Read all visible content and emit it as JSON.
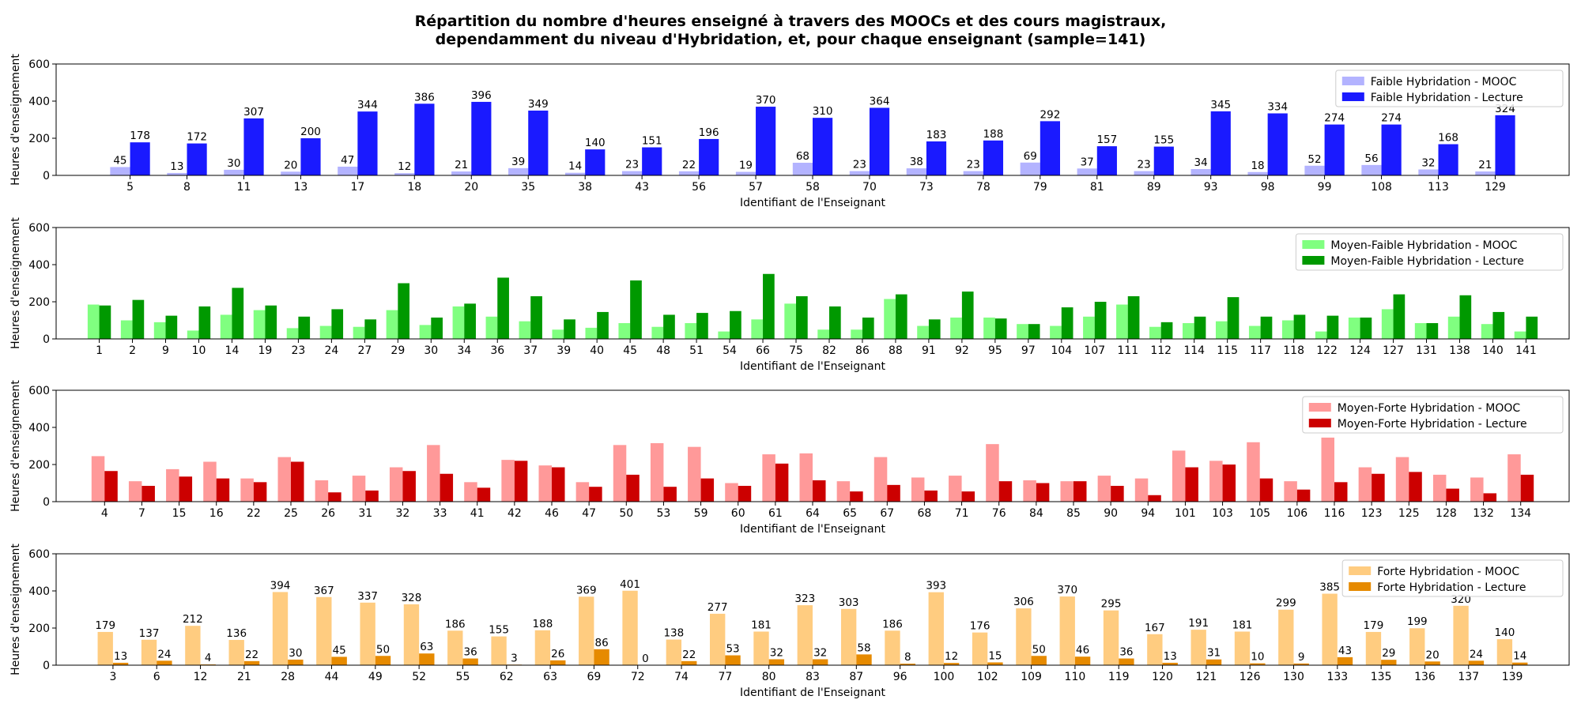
{
  "title_line1": "Répartition du nombre d'heures enseigné à travers des MOOCs et des cours magistraux,",
  "title_line2": "dependamment du niveau d'Hybridation, et, pour chaque enseignant (sample=141)",
  "chart_data": [
    {
      "type": "bar",
      "xlabel": "Identifiant de l'Enseignant",
      "ylabel": "Heures d'enseignement",
      "ylim": [
        0,
        600
      ],
      "yticks": [
        0,
        200,
        400,
        600
      ],
      "grid": false,
      "legend_position": "top-right",
      "show_value_labels": true,
      "categories": [
        "5",
        "8",
        "11",
        "13",
        "17",
        "18",
        "20",
        "35",
        "38",
        "43",
        "56",
        "57",
        "58",
        "70",
        "73",
        "78",
        "79",
        "81",
        "89",
        "93",
        "98",
        "99",
        "108",
        "113",
        "129"
      ],
      "series": [
        {
          "name": "Faible Hybridation - MOOC",
          "color": "#b3b3ff",
          "values": [
            45,
            13,
            30,
            20,
            47,
            12,
            21,
            39,
            14,
            23,
            22,
            19,
            68,
            23,
            38,
            23,
            69,
            37,
            23,
            34,
            18,
            52,
            56,
            32,
            21
          ]
        },
        {
          "name": "Faible Hybridation - Lecture",
          "color": "#1a1aff",
          "values": [
            178,
            172,
            307,
            200,
            344,
            386,
            396,
            349,
            140,
            151,
            196,
            370,
            310,
            364,
            183,
            188,
            292,
            157,
            155,
            345,
            334,
            274,
            274,
            168,
            324
          ]
        }
      ]
    },
    {
      "type": "bar",
      "xlabel": "Identifiant de l'Enseignant",
      "ylabel": "Heures d'enseignement",
      "ylim": [
        0,
        600
      ],
      "yticks": [
        0,
        200,
        400,
        600
      ],
      "grid": false,
      "legend_position": "top-right",
      "show_value_labels": false,
      "categories": [
        "1",
        "2",
        "9",
        "10",
        "14",
        "19",
        "23",
        "24",
        "27",
        "29",
        "30",
        "34",
        "36",
        "37",
        "39",
        "40",
        "45",
        "48",
        "51",
        "54",
        "66",
        "75",
        "82",
        "86",
        "88",
        "91",
        "92",
        "95",
        "97",
        "104",
        "107",
        "111",
        "112",
        "114",
        "115",
        "117",
        "118",
        "122",
        "124",
        "127",
        "131",
        "138",
        "140",
        "141"
      ],
      "series": [
        {
          "name": "Moyen-Faible Hybridation - MOOC",
          "color": "#80ff80",
          "values": [
            185,
            100,
            90,
            45,
            130,
            155,
            58,
            70,
            65,
            155,
            75,
            175,
            120,
            95,
            50,
            60,
            85,
            65,
            85,
            40,
            105,
            190,
            50,
            50,
            215,
            70,
            115,
            115,
            80,
            70,
            120,
            185,
            65,
            85,
            95,
            70,
            100,
            40,
            115,
            160,
            85,
            120,
            80,
            40
          ]
        },
        {
          "name": "Moyen-Faible Hybridation - Lecture",
          "color": "#009900",
          "values": [
            180,
            210,
            125,
            175,
            275,
            180,
            120,
            160,
            105,
            300,
            115,
            190,
            330,
            230,
            105,
            145,
            315,
            130,
            140,
            150,
            350,
            230,
            175,
            115,
            240,
            105,
            255,
            110,
            80,
            170,
            200,
            230,
            90,
            120,
            225,
            120,
            130,
            125,
            115,
            240,
            85,
            235,
            145,
            120
          ]
        }
      ]
    },
    {
      "type": "bar",
      "xlabel": "Identifiant de l'Enseignant",
      "ylabel": "Heures d'enseignement",
      "ylim": [
        0,
        600
      ],
      "yticks": [
        0,
        200,
        400,
        600
      ],
      "grid": false,
      "legend_position": "top-right",
      "show_value_labels": false,
      "categories": [
        "4",
        "7",
        "15",
        "16",
        "22",
        "25",
        "26",
        "31",
        "32",
        "33",
        "41",
        "42",
        "46",
        "47",
        "50",
        "53",
        "59",
        "60",
        "61",
        "64",
        "65",
        "67",
        "68",
        "71",
        "76",
        "84",
        "85",
        "90",
        "94",
        "101",
        "103",
        "105",
        "106",
        "116",
        "123",
        "125",
        "128",
        "132",
        "134"
      ],
      "series": [
        {
          "name": "Moyen-Forte Hybridation - MOOC",
          "color": "#ff9999",
          "values": [
            245,
            110,
            175,
            215,
            125,
            240,
            115,
            140,
            185,
            305,
            105,
            225,
            195,
            105,
            305,
            315,
            295,
            100,
            255,
            260,
            110,
            240,
            130,
            140,
            310,
            115,
            110,
            140,
            125,
            275,
            220,
            320,
            110,
            345,
            185,
            240,
            145,
            130,
            255
          ]
        },
        {
          "name": "Moyen-Forte Hybridation - Lecture",
          "color": "#cc0000",
          "values": [
            165,
            85,
            135,
            125,
            105,
            215,
            50,
            60,
            165,
            150,
            75,
            220,
            185,
            80,
            145,
            80,
            125,
            85,
            205,
            115,
            55,
            90,
            60,
            55,
            110,
            100,
            110,
            85,
            35,
            185,
            200,
            125,
            65,
            105,
            150,
            160,
            70,
            45,
            145
          ]
        }
      ]
    },
    {
      "type": "bar",
      "xlabel": "Identifiant de l'Enseignant",
      "ylabel": "Heures d'enseignement",
      "ylim": [
        0,
        600
      ],
      "yticks": [
        0,
        200,
        400,
        600
      ],
      "grid": false,
      "legend_position": "top-right",
      "show_value_labels": true,
      "categories": [
        "3",
        "6",
        "12",
        "21",
        "28",
        "44",
        "49",
        "52",
        "55",
        "62",
        "63",
        "69",
        "72",
        "74",
        "77",
        "80",
        "83",
        "87",
        "96",
        "100",
        "102",
        "109",
        "110",
        "119",
        "120",
        "121",
        "126",
        "130",
        "133",
        "135",
        "136",
        "137",
        "139"
      ],
      "series": [
        {
          "name": "Forte Hybridation - MOOC",
          "color": "#ffcc80",
          "values": [
            179,
            137,
            212,
            136,
            394,
            367,
            337,
            328,
            186,
            155,
            188,
            369,
            401,
            138,
            277,
            181,
            323,
            303,
            186,
            393,
            176,
            306,
            370,
            295,
            167,
            191,
            181,
            299,
            385,
            179,
            199,
            320,
            140
          ]
        },
        {
          "name": "Forte Hybridation - Lecture",
          "color": "#e68a00",
          "values": [
            13,
            24,
            4,
            22,
            30,
            45,
            50,
            63,
            36,
            3,
            26,
            86,
            0,
            22,
            53,
            32,
            32,
            58,
            8,
            12,
            15,
            50,
            46,
            36,
            13,
            31,
            10,
            9,
            43,
            29,
            20,
            24,
            14
          ]
        }
      ]
    }
  ]
}
